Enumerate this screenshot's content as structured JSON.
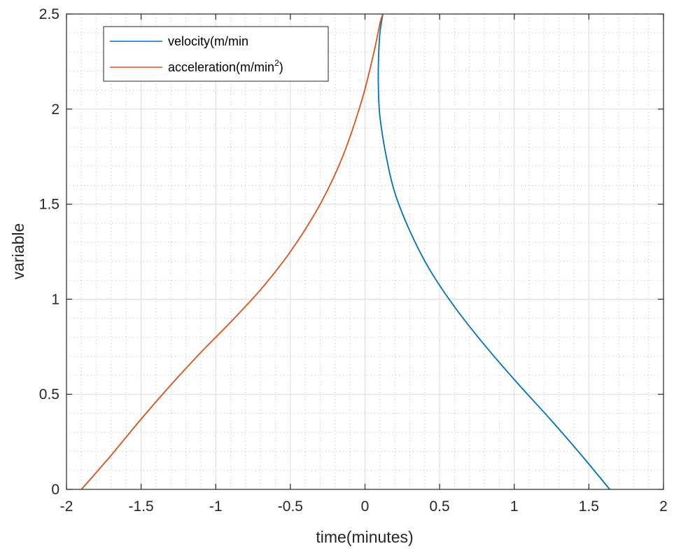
{
  "chart_data": {
    "type": "line",
    "xlabel": "time(minutes)",
    "ylabel": "variable",
    "xlim": [
      -2,
      2
    ],
    "ylim": [
      0,
      2.5
    ],
    "xticks": [
      "-2",
      "-1.5",
      "-1",
      "-0.5",
      "0",
      "0.5",
      "1",
      "1.5",
      "2"
    ],
    "yticks": [
      "0",
      "0.5",
      "1",
      "1.5",
      "2",
      "2.5"
    ],
    "grid": true,
    "minor_grid": true,
    "legend_position": "top-left",
    "series": [
      {
        "name": "velocity(m/min)",
        "legend_text": "velocity(m/min",
        "legend_suffix": "",
        "color": "#0072BD",
        "x": [
          1.64,
          1.45,
          1.24,
          1.02,
          0.8,
          0.6,
          0.43,
          0.3,
          0.2,
          0.14,
          0.1,
          0.09,
          0.09,
          0.1,
          0.12
        ],
        "y": [
          0.0,
          0.18,
          0.37,
          0.56,
          0.76,
          0.96,
          1.16,
          1.36,
          1.56,
          1.76,
          1.96,
          2.1,
          2.25,
          2.4,
          2.5
        ]
      },
      {
        "name": "acceleration(m/min^2)",
        "legend_text": "acceleration(m/min",
        "legend_sup": "2",
        "legend_suffix": ")",
        "color": "#D95319",
        "x": [
          -1.9,
          -1.7,
          -1.5,
          -1.3,
          -1.1,
          -0.9,
          -0.7,
          -0.5,
          -0.3,
          -0.15,
          -0.02,
          0.06,
          0.1,
          0.12
        ],
        "y": [
          0.0,
          0.18,
          0.37,
          0.55,
          0.72,
          0.88,
          1.05,
          1.25,
          1.5,
          1.75,
          2.05,
          2.3,
          2.45,
          2.5
        ]
      }
    ]
  }
}
